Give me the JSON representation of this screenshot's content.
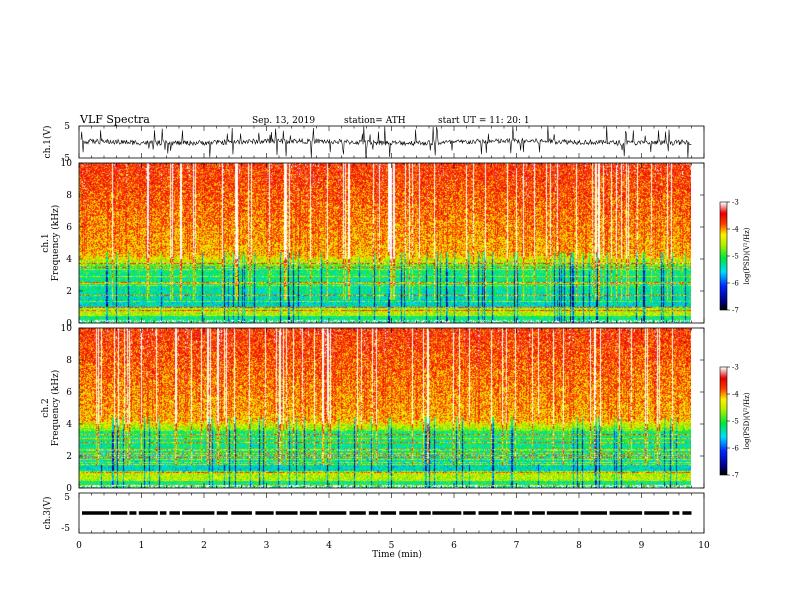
{
  "header": {
    "title": "VLF  Spectra",
    "date": "Sep. 13, 2019",
    "station": "station= ATH",
    "start": "start  UT  =    11: 20: 1"
  },
  "chart_data": [
    {
      "type": "line",
      "name": "ch1-waveform",
      "ylabel": "ch.1(V)",
      "ylim": [
        -5,
        5
      ],
      "yticks": [
        "5",
        "-5"
      ],
      "xlim": [
        0,
        10
      ],
      "trace_end_min": 9.8
    },
    {
      "type": "heatmap",
      "name": "ch1-spectrogram",
      "ylabel_top": "ch.1",
      "ylabel": "Frequency (kHz)",
      "ylim": [
        0,
        10
      ],
      "yticks": [
        "0",
        "2",
        "4",
        "6",
        "8",
        "10"
      ],
      "xlim": [
        0,
        10
      ],
      "data_end_min": 9.8,
      "colorbar": {
        "label": "log(PSD)(V²/Hz)",
        "range": [
          -7,
          -3
        ],
        "ticks": [
          "-3",
          "-4",
          "-5",
          "-6",
          "-7"
        ]
      }
    },
    {
      "type": "heatmap",
      "name": "ch2-spectrogram",
      "ylabel_top": "ch.2",
      "ylabel": "Frequency (kHz)",
      "ylim": [
        0,
        10
      ],
      "yticks": [
        "0",
        "2",
        "4",
        "6",
        "8",
        "10"
      ],
      "xlim": [
        0,
        10
      ],
      "data_end_min": 9.8,
      "colorbar": {
        "label": "log(PSD)(V²/Hz)",
        "range": [
          -7,
          -3
        ],
        "ticks": [
          "-3",
          "-4",
          "-5",
          "-6",
          "-7"
        ]
      }
    },
    {
      "type": "line",
      "name": "ch3-waveform",
      "ylabel": "ch.3(V)",
      "ylim": [
        -5,
        5
      ],
      "yticks": [
        "5",
        "-5"
      ],
      "xlim": [
        0,
        10
      ],
      "level_v": 0,
      "trace_end_min": 9.8
    }
  ],
  "xaxis": {
    "label": "Time  (min)",
    "ticks": [
      "0",
      "1",
      "2",
      "3",
      "4",
      "5",
      "6",
      "7",
      "8",
      "9",
      "10"
    ]
  }
}
